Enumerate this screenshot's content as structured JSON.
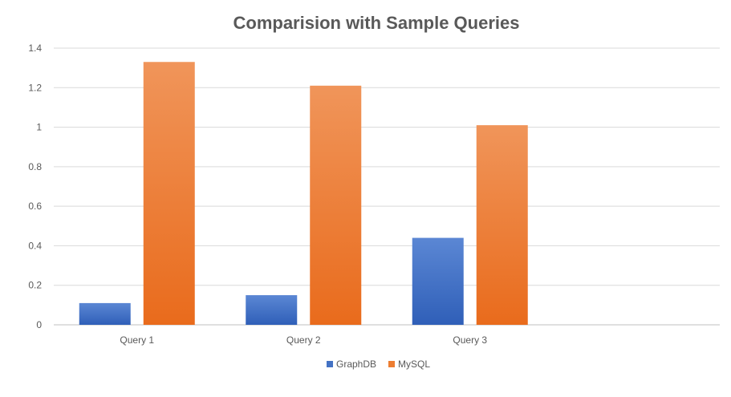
{
  "chart_data": {
    "type": "bar",
    "title": "Comparision with Sample Queries",
    "xlabel": "",
    "ylabel": "",
    "categories": [
      "Query 1",
      "Query 2",
      "Query 3"
    ],
    "series": [
      {
        "name": "GraphDB",
        "values": [
          0.11,
          0.15,
          0.44
        ],
        "color": "#4472C4"
      },
      {
        "name": "MySQL",
        "values": [
          1.33,
          1.21,
          1.01
        ],
        "color": "#ED7D31"
      }
    ],
    "ylim": [
      0,
      1.4
    ],
    "yticks": [
      "0",
      "0.2",
      "0.4",
      "0.6",
      "0.8",
      "1",
      "1.2",
      "1.4"
    ],
    "grid": true,
    "legend_position": "bottom",
    "category_slots": 4
  }
}
